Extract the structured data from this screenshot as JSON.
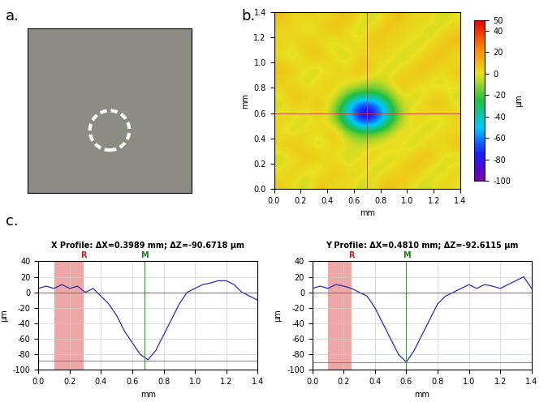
{
  "chart_data": [
    {
      "type": "image",
      "panel_label": "a."
    },
    {
      "type": "heatmap",
      "panel_label": "b.",
      "x_label": "mm",
      "y_label": "mm",
      "xlim": [
        0,
        1.4
      ],
      "ylim": [
        0,
        1.4
      ],
      "xticks": [
        {
          "value": 0,
          "label": "0.0"
        },
        {
          "value": 0.2,
          "label": "0.2"
        },
        {
          "value": 0.4,
          "label": "0.4"
        },
        {
          "value": 0.6,
          "label": "0.6"
        },
        {
          "value": 0.8,
          "label": "0.8"
        },
        {
          "value": 1.0,
          "label": "1.0"
        },
        {
          "value": 1.2,
          "label": "1.2"
        },
        {
          "value": 1.4,
          "label": "1.4"
        }
      ],
      "yticks": [
        {
          "value": 0,
          "label": "0.0"
        },
        {
          "value": 0.2,
          "label": "0.2"
        },
        {
          "value": 0.4,
          "label": "0.4"
        },
        {
          "value": 0.6,
          "label": "0.6"
        },
        {
          "value": 0.8,
          "label": "0.8"
        },
        {
          "value": 1.0,
          "label": "1.0"
        },
        {
          "value": 1.2,
          "label": "1.2"
        },
        {
          "value": 1.4,
          "label": "1.4"
        }
      ],
      "colorbar_label": "µm",
      "colorbar_range": [
        -100,
        50
      ],
      "colorbar_ticks": [
        -100,
        -80,
        -60,
        -40,
        -20,
        0,
        20,
        40,
        50
      ],
      "crosshair": [
        0.7,
        0.6
      ],
      "cells": [
        [
          5,
          0,
          -5,
          10,
          0,
          5,
          -5,
          0,
          10,
          5,
          0,
          -5,
          5,
          0
        ],
        [
          0,
          5,
          0,
          -5,
          10,
          0,
          5,
          -5,
          0,
          5,
          10,
          0,
          -5,
          5
        ],
        [
          -5,
          0,
          10,
          5,
          0,
          -5,
          0,
          5,
          -5,
          0,
          5,
          10,
          0,
          -5
        ],
        [
          5,
          10,
          0,
          -5,
          5,
          0,
          -5,
          0,
          5,
          0,
          -5,
          5,
          0,
          10
        ],
        [
          0,
          -5,
          5,
          0,
          10,
          -10,
          -20,
          -20,
          -10,
          5,
          0,
          -5,
          5,
          0
        ],
        [
          5,
          0,
          -5,
          5,
          -10,
          -45,
          -85,
          -80,
          -40,
          -10,
          5,
          0,
          -5,
          5
        ],
        [
          -5,
          5,
          0,
          10,
          -10,
          -45,
          -80,
          -75,
          -40,
          -5,
          0,
          5,
          10,
          0
        ],
        [
          0,
          10,
          5,
          0,
          5,
          -15,
          -25,
          -25,
          -15,
          5,
          -5,
          0,
          5,
          -5
        ],
        [
          5,
          0,
          -5,
          5,
          0,
          5,
          0,
          -5,
          0,
          10,
          5,
          0,
          -5,
          5
        ],
        [
          10,
          5,
          0,
          -5,
          5,
          0,
          10,
          5,
          -5,
          0,
          5,
          10,
          0,
          5
        ],
        [
          0,
          -5,
          5,
          10,
          0,
          -5,
          5,
          0,
          5,
          -5,
          0,
          5,
          10,
          0
        ],
        [
          5,
          0,
          10,
          0,
          -5,
          5,
          0,
          10,
          0,
          5,
          -5,
          0,
          5,
          10
        ],
        [
          0,
          5,
          -5,
          5,
          10,
          0,
          -5,
          5,
          10,
          0,
          5,
          -5,
          0,
          5
        ],
        [
          10,
          0,
          5,
          0,
          5,
          10,
          0,
          -5,
          5,
          10,
          0,
          5,
          -5,
          0
        ]
      ]
    },
    {
      "type": "line",
      "panel_label": "c.",
      "title": "X Profile: ΔX=0.3989 mm; ΔZ=-90.6718 µm",
      "x_label": "mm",
      "y_label": "µm",
      "color": "#2b2bb0",
      "xlim": [
        0,
        1.4
      ],
      "ylim": [
        -100,
        40
      ],
      "xticks": [
        {
          "value": 0,
          "label": "0.0"
        },
        {
          "value": 0.2,
          "label": "0.2"
        },
        {
          "value": 0.4,
          "label": "0.4"
        },
        {
          "value": 0.6,
          "label": "0.6"
        },
        {
          "value": 0.8,
          "label": "0.8"
        },
        {
          "value": 1.0,
          "label": "1.0"
        },
        {
          "value": 1.2,
          "label": "1.2"
        },
        {
          "value": 1.4,
          "label": "1.4"
        }
      ],
      "yticks": [
        -100,
        -80,
        -60,
        -40,
        -20,
        0,
        20,
        40
      ],
      "grid": true,
      "x": [
        0,
        0.05,
        0.1,
        0.15,
        0.2,
        0.25,
        0.3,
        0.35,
        0.4,
        0.45,
        0.5,
        0.55,
        0.6,
        0.65,
        0.7,
        0.75,
        0.8,
        0.85,
        0.9,
        0.95,
        1.0,
        1.05,
        1.1,
        1.15,
        1.2,
        1.25,
        1.3,
        1.35,
        1.4
      ],
      "values": [
        5,
        8,
        5,
        10,
        5,
        8,
        0,
        5,
        -5,
        -15,
        -30,
        -50,
        -65,
        -80,
        -87,
        -75,
        -55,
        -35,
        -15,
        0,
        5,
        10,
        12,
        15,
        15,
        10,
        0,
        -5,
        -10
      ],
      "reference_band": [
        0.1,
        0.29
      ],
      "reference_label": "R",
      "marker_x": 0.68,
      "marker_label": "M",
      "reference_level": 0,
      "measured_level": -88
    },
    {
      "type": "line",
      "title": "Y Profile: ΔX=0.4810 mm; ΔZ=-92.6115 µm",
      "x_label": "mm",
      "y_label": "µm",
      "color": "#2b2bb0",
      "xlim": [
        0,
        1.4
      ],
      "ylim": [
        -100,
        40
      ],
      "xticks": [
        {
          "value": 0,
          "label": "0.0"
        },
        {
          "value": 0.2,
          "label": "0.2"
        },
        {
          "value": 0.4,
          "label": "0.4"
        },
        {
          "value": 0.6,
          "label": "0.6"
        },
        {
          "value": 0.8,
          "label": "0.8"
        },
        {
          "value": 1.0,
          "label": "1.0"
        },
        {
          "value": 1.2,
          "label": "1.2"
        },
        {
          "value": 1.4,
          "label": "1.4"
        }
      ],
      "yticks": [
        -100,
        -80,
        -60,
        -40,
        -20,
        0,
        20,
        40
      ],
      "grid": true,
      "x": [
        0,
        0.05,
        0.1,
        0.15,
        0.2,
        0.25,
        0.3,
        0.35,
        0.4,
        0.45,
        0.5,
        0.55,
        0.6,
        0.65,
        0.7,
        0.75,
        0.8,
        0.85,
        0.9,
        0.95,
        1.0,
        1.05,
        1.1,
        1.15,
        1.2,
        1.25,
        1.3,
        1.35,
        1.4
      ],
      "values": [
        5,
        8,
        5,
        10,
        8,
        5,
        0,
        -5,
        -20,
        -40,
        -60,
        -80,
        -90,
        -75,
        -55,
        -35,
        -15,
        -5,
        0,
        5,
        10,
        5,
        10,
        8,
        5,
        10,
        15,
        20,
        5
      ],
      "reference_band": [
        0.1,
        0.25
      ],
      "reference_label": "R",
      "marker_x": 0.6,
      "marker_label": "M",
      "reference_level": 0,
      "measured_level": -90
    }
  ]
}
